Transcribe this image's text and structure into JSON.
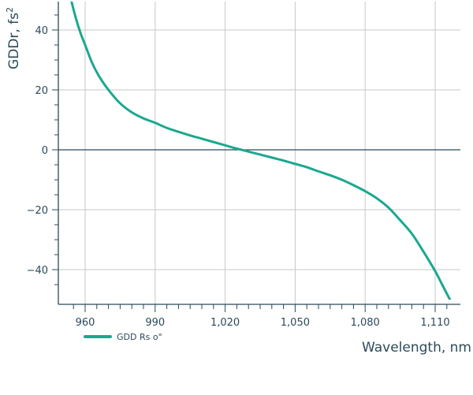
{
  "chart_data": {
    "type": "line",
    "xlabel": "Wavelength, nm",
    "ylabel": "GDDr, fs",
    "ylabel_superscript": "2",
    "xlim": [
      951,
      1118
    ],
    "ylim": [
      -50,
      50
    ],
    "x_ticks": [
      960,
      990,
      1020,
      1050,
      1080,
      1110
    ],
    "x_tick_labels": [
      "960",
      "990",
      "1,020",
      "1,050",
      "1,080",
      "1,110"
    ],
    "y_ticks": [
      40,
      20,
      0,
      -20,
      -40
    ],
    "y_tick_labels": [
      "40",
      "20",
      "0",
      "−20",
      "−40"
    ],
    "grid": true,
    "legend_position": "bottom-left",
    "series": [
      {
        "name": "GDD Rs o°",
        "color": "#1aa88f",
        "x": [
          954,
          956,
          958,
          960,
          963,
          966,
          970,
          975,
          980,
          985,
          990,
          995,
          1000,
          1005,
          1010,
          1015,
          1020,
          1025,
          1030,
          1035,
          1040,
          1045,
          1050,
          1055,
          1060,
          1065,
          1070,
          1075,
          1080,
          1085,
          1090,
          1095,
          1100,
          1105,
          1110,
          1113,
          1115,
          1117
        ],
        "y": [
          50,
          44,
          39,
          35,
          29,
          24.5,
          20,
          15.5,
          12.5,
          10.5,
          9,
          7.3,
          6,
          4.8,
          3.7,
          2.6,
          1.5,
          0.4,
          -0.6,
          -1.6,
          -2.6,
          -3.6,
          -4.7,
          -5.8,
          -7.2,
          -8.5,
          -10,
          -11.8,
          -13.8,
          -16.2,
          -19.3,
          -23.5,
          -28,
          -34,
          -40.5,
          -45,
          -48,
          -51
        ]
      }
    ]
  }
}
